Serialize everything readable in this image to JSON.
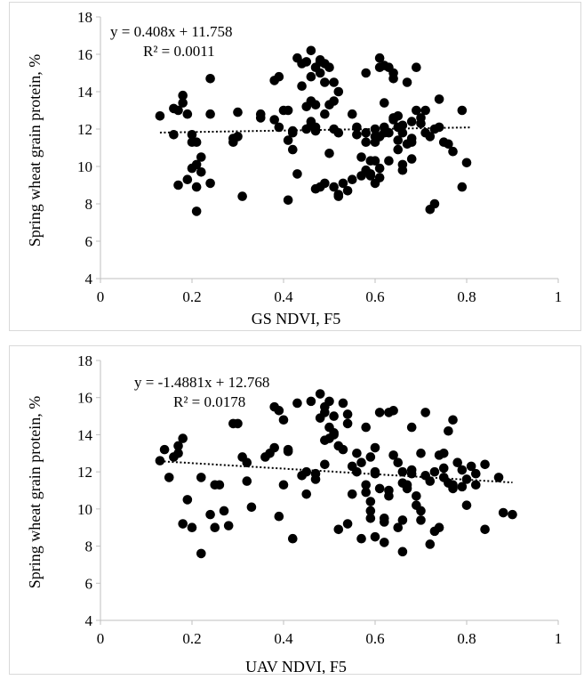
{
  "chart_data": [
    {
      "type": "scatter",
      "xlabel": "GS NDVI, F5",
      "ylabel": "Spring wheat grain protein, %",
      "xlim": [
        0,
        1
      ],
      "ylim": [
        4,
        18
      ],
      "xticks": [
        "0",
        "0.2",
        "0.4",
        "0.6",
        "0.8",
        "1"
      ],
      "yticks": [
        "4",
        "6",
        "8",
        "10",
        "12",
        "14",
        "16",
        "18"
      ],
      "trendline": {
        "style": "dotted",
        "slope": 0.408,
        "intercept": 11.758,
        "x_range": [
          0.13,
          0.81
        ]
      },
      "annotations": {
        "equation": "y = 0.408x + 11.758",
        "r2": "R² = 0.0011"
      },
      "points": [
        [
          0.13,
          12.7
        ],
        [
          0.16,
          11.7
        ],
        [
          0.16,
          13.1
        ],
        [
          0.17,
          13.0
        ],
        [
          0.17,
          9.0
        ],
        [
          0.18,
          13.4
        ],
        [
          0.18,
          13.8
        ],
        [
          0.19,
          12.8
        ],
        [
          0.19,
          9.3
        ],
        [
          0.2,
          9.9
        ],
        [
          0.2,
          11.7
        ],
        [
          0.2,
          11.3
        ],
        [
          0.21,
          8.9
        ],
        [
          0.21,
          11.3
        ],
        [
          0.21,
          10.1
        ],
        [
          0.21,
          7.6
        ],
        [
          0.22,
          10.5
        ],
        [
          0.22,
          9.7
        ],
        [
          0.24,
          14.7
        ],
        [
          0.24,
          12.8
        ],
        [
          0.24,
          9.1
        ],
        [
          0.29,
          11.3
        ],
        [
          0.29,
          11.5
        ],
        [
          0.3,
          12.9
        ],
        [
          0.3,
          11.6
        ],
        [
          0.31,
          8.4
        ],
        [
          0.35,
          12.8
        ],
        [
          0.35,
          12.6
        ],
        [
          0.38,
          12.5
        ],
        [
          0.38,
          14.6
        ],
        [
          0.39,
          12.1
        ],
        [
          0.39,
          14.8
        ],
        [
          0.4,
          13.0
        ],
        [
          0.41,
          8.2
        ],
        [
          0.41,
          11.4
        ],
        [
          0.41,
          13.0
        ],
        [
          0.42,
          10.9
        ],
        [
          0.42,
          11.9
        ],
        [
          0.42,
          11.8
        ],
        [
          0.43,
          15.8
        ],
        [
          0.43,
          9.6
        ],
        [
          0.44,
          15.5
        ],
        [
          0.44,
          14.3
        ],
        [
          0.45,
          12.0
        ],
        [
          0.45,
          15.6
        ],
        [
          0.45,
          13.2
        ],
        [
          0.46,
          16.2
        ],
        [
          0.46,
          13.5
        ],
        [
          0.46,
          12.4
        ],
        [
          0.46,
          14.8
        ],
        [
          0.46,
          12.2
        ],
        [
          0.47,
          15.3
        ],
        [
          0.47,
          11.9
        ],
        [
          0.47,
          12.1
        ],
        [
          0.47,
          8.8
        ],
        [
          0.47,
          13.3
        ],
        [
          0.48,
          15.6
        ],
        [
          0.48,
          15.7
        ],
        [
          0.48,
          15.0
        ],
        [
          0.48,
          8.9
        ],
        [
          0.49,
          15.5
        ],
        [
          0.49,
          9.1
        ],
        [
          0.49,
          12.8
        ],
        [
          0.49,
          14.5
        ],
        [
          0.5,
          15.3
        ],
        [
          0.5,
          13.3
        ],
        [
          0.5,
          10.7
        ],
        [
          0.51,
          14.5
        ],
        [
          0.51,
          13.5
        ],
        [
          0.51,
          12.0
        ],
        [
          0.51,
          8.9
        ],
        [
          0.52,
          14.0
        ],
        [
          0.52,
          11.8
        ],
        [
          0.52,
          8.5
        ],
        [
          0.52,
          8.4
        ],
        [
          0.53,
          9.1
        ],
        [
          0.54,
          8.7
        ],
        [
          0.55,
          12.8
        ],
        [
          0.55,
          9.3
        ],
        [
          0.56,
          11.7
        ],
        [
          0.56,
          12.1
        ],
        [
          0.57,
          10.5
        ],
        [
          0.57,
          9.5
        ],
        [
          0.58,
          11.8
        ],
        [
          0.58,
          11.3
        ],
        [
          0.58,
          15.0
        ],
        [
          0.58,
          9.8
        ],
        [
          0.59,
          9.6
        ],
        [
          0.59,
          10.3
        ],
        [
          0.59,
          9.5
        ],
        [
          0.6,
          9.1
        ],
        [
          0.6,
          11.6
        ],
        [
          0.6,
          12.0
        ],
        [
          0.6,
          11.3
        ],
        [
          0.6,
          10.3
        ],
        [
          0.61,
          9.4
        ],
        [
          0.61,
          9.9
        ],
        [
          0.61,
          15.8
        ],
        [
          0.61,
          15.3
        ],
        [
          0.61,
          11.6
        ],
        [
          0.62,
          12.1
        ],
        [
          0.62,
          15.4
        ],
        [
          0.62,
          11.8
        ],
        [
          0.62,
          13.4
        ],
        [
          0.63,
          15.3
        ],
        [
          0.63,
          10.3
        ],
        [
          0.63,
          11.8
        ],
        [
          0.64,
          15.0
        ],
        [
          0.64,
          12.6
        ],
        [
          0.64,
          14.7
        ],
        [
          0.64,
          12.5
        ],
        [
          0.65,
          12.7
        ],
        [
          0.65,
          12.1
        ],
        [
          0.65,
          11.4
        ],
        [
          0.65,
          10.9
        ],
        [
          0.66,
          11.8
        ],
        [
          0.66,
          12.2
        ],
        [
          0.66,
          10.1
        ],
        [
          0.66,
          9.8
        ],
        [
          0.67,
          11.2
        ],
        [
          0.67,
          14.5
        ],
        [
          0.68,
          10.4
        ],
        [
          0.68,
          11.5
        ],
        [
          0.68,
          12.4
        ],
        [
          0.68,
          11.3
        ],
        [
          0.69,
          15.3
        ],
        [
          0.69,
          13.0
        ],
        [
          0.7,
          12.6
        ],
        [
          0.7,
          12.3
        ],
        [
          0.71,
          13.0
        ],
        [
          0.71,
          11.8
        ],
        [
          0.72,
          7.7
        ],
        [
          0.72,
          11.6
        ],
        [
          0.73,
          8.0
        ],
        [
          0.73,
          12.0
        ],
        [
          0.74,
          13.6
        ],
        [
          0.74,
          12.1
        ],
        [
          0.75,
          11.3
        ],
        [
          0.76,
          11.2
        ],
        [
          0.77,
          10.8
        ],
        [
          0.79,
          13.0
        ],
        [
          0.79,
          8.9
        ],
        [
          0.8,
          10.2
        ]
      ]
    },
    {
      "type": "scatter",
      "xlabel": "UAV NDVI, F5",
      "ylabel": "Spring wheat grain protein, %",
      "xlim": [
        0,
        1
      ],
      "ylim": [
        4,
        18
      ],
      "xticks": [
        "0",
        "0.2",
        "0.4",
        "0.6",
        "0.8",
        "1"
      ],
      "yticks": [
        "4",
        "6",
        "8",
        "10",
        "12",
        "14",
        "16",
        "18"
      ],
      "trendline": {
        "style": "dotted",
        "slope": -1.4881,
        "intercept": 12.768,
        "x_range": [
          0.13,
          0.9
        ]
      },
      "annotations": {
        "equation": "y = -1.4881x + 12.768",
        "r2": "R² = 0.0178"
      },
      "points": [
        [
          0.13,
          12.6
        ],
        [
          0.14,
          13.2
        ],
        [
          0.15,
          11.7
        ],
        [
          0.16,
          12.8
        ],
        [
          0.17,
          13.4
        ],
        [
          0.17,
          13.0
        ],
        [
          0.18,
          9.2
        ],
        [
          0.18,
          13.8
        ],
        [
          0.19,
          10.5
        ],
        [
          0.2,
          9.0
        ],
        [
          0.22,
          7.6
        ],
        [
          0.22,
          11.7
        ],
        [
          0.24,
          9.7
        ],
        [
          0.25,
          11.3
        ],
        [
          0.25,
          9.0
        ],
        [
          0.26,
          11.3
        ],
        [
          0.27,
          9.9
        ],
        [
          0.28,
          9.1
        ],
        [
          0.29,
          14.6
        ],
        [
          0.3,
          14.6
        ],
        [
          0.31,
          12.8
        ],
        [
          0.32,
          12.5
        ],
        [
          0.32,
          11.5
        ],
        [
          0.33,
          10.1
        ],
        [
          0.36,
          12.8
        ],
        [
          0.37,
          13.0
        ],
        [
          0.38,
          13.3
        ],
        [
          0.38,
          15.5
        ],
        [
          0.39,
          9.6
        ],
        [
          0.39,
          15.3
        ],
        [
          0.4,
          11.3
        ],
        [
          0.4,
          14.8
        ],
        [
          0.41,
          13.2
        ],
        [
          0.41,
          13.1
        ],
        [
          0.42,
          8.4
        ],
        [
          0.43,
          15.7
        ],
        [
          0.44,
          11.8
        ],
        [
          0.45,
          12.0
        ],
        [
          0.45,
          10.8
        ],
        [
          0.46,
          15.8
        ],
        [
          0.47,
          11.9
        ],
        [
          0.47,
          11.6
        ],
        [
          0.48,
          16.2
        ],
        [
          0.48,
          14.9
        ],
        [
          0.49,
          13.7
        ],
        [
          0.49,
          15.5
        ],
        [
          0.49,
          15.2
        ],
        [
          0.49,
          12.4
        ],
        [
          0.5,
          15.8
        ],
        [
          0.5,
          14.4
        ],
        [
          0.5,
          13.8
        ],
        [
          0.51,
          14.1
        ],
        [
          0.51,
          15.0
        ],
        [
          0.51,
          14.0
        ],
        [
          0.52,
          8.9
        ],
        [
          0.52,
          13.4
        ],
        [
          0.53,
          15.7
        ],
        [
          0.53,
          13.2
        ],
        [
          0.54,
          9.2
        ],
        [
          0.54,
          15.1
        ],
        [
          0.54,
          14.6
        ],
        [
          0.55,
          10.8
        ],
        [
          0.55,
          12.3
        ],
        [
          0.56,
          13.0
        ],
        [
          0.56,
          12.0
        ],
        [
          0.57,
          8.4
        ],
        [
          0.57,
          12.5
        ],
        [
          0.58,
          10.9
        ],
        [
          0.58,
          11.3
        ],
        [
          0.58,
          14.4
        ],
        [
          0.59,
          9.9
        ],
        [
          0.59,
          10.4
        ],
        [
          0.59,
          9.5
        ],
        [
          0.59,
          12.8
        ],
        [
          0.6,
          11.9
        ],
        [
          0.6,
          13.3
        ],
        [
          0.6,
          8.5
        ],
        [
          0.6,
          12.0
        ],
        [
          0.61,
          15.2
        ],
        [
          0.61,
          11.1
        ],
        [
          0.62,
          9.3
        ],
        [
          0.62,
          9.5
        ],
        [
          0.62,
          8.2
        ],
        [
          0.63,
          15.2
        ],
        [
          0.63,
          10.7
        ],
        [
          0.63,
          11.0
        ],
        [
          0.64,
          15.3
        ],
        [
          0.64,
          12.9
        ],
        [
          0.65,
          12.5
        ],
        [
          0.65,
          9.0
        ],
        [
          0.66,
          11.4
        ],
        [
          0.66,
          12.0
        ],
        [
          0.66,
          9.4
        ],
        [
          0.66,
          7.7
        ],
        [
          0.67,
          11.3
        ],
        [
          0.67,
          11.1
        ],
        [
          0.68,
          14.4
        ],
        [
          0.68,
          12.1
        ],
        [
          0.68,
          11.9
        ],
        [
          0.69,
          10.7
        ],
        [
          0.69,
          10.2
        ],
        [
          0.7,
          9.9
        ],
        [
          0.7,
          13.0
        ],
        [
          0.7,
          9.4
        ],
        [
          0.71,
          11.8
        ],
        [
          0.71,
          15.2
        ],
        [
          0.72,
          11.5
        ],
        [
          0.72,
          8.1
        ],
        [
          0.73,
          8.8
        ],
        [
          0.73,
          12.0
        ],
        [
          0.74,
          12.9
        ],
        [
          0.74,
          9.0
        ],
        [
          0.75,
          11.7
        ],
        [
          0.75,
          12.2
        ],
        [
          0.75,
          13.0
        ],
        [
          0.76,
          14.2
        ],
        [
          0.76,
          11.4
        ],
        [
          0.77,
          14.8
        ],
        [
          0.77,
          11.3
        ],
        [
          0.77,
          11.1
        ],
        [
          0.78,
          12.5
        ],
        [
          0.79,
          11.2
        ],
        [
          0.79,
          12.1
        ],
        [
          0.8,
          10.2
        ],
        [
          0.8,
          11.6
        ],
        [
          0.81,
          12.3
        ],
        [
          0.82,
          11.3
        ],
        [
          0.82,
          11.9
        ],
        [
          0.84,
          12.4
        ],
        [
          0.84,
          8.9
        ],
        [
          0.87,
          11.7
        ],
        [
          0.88,
          9.8
        ],
        [
          0.9,
          9.7
        ]
      ]
    }
  ]
}
